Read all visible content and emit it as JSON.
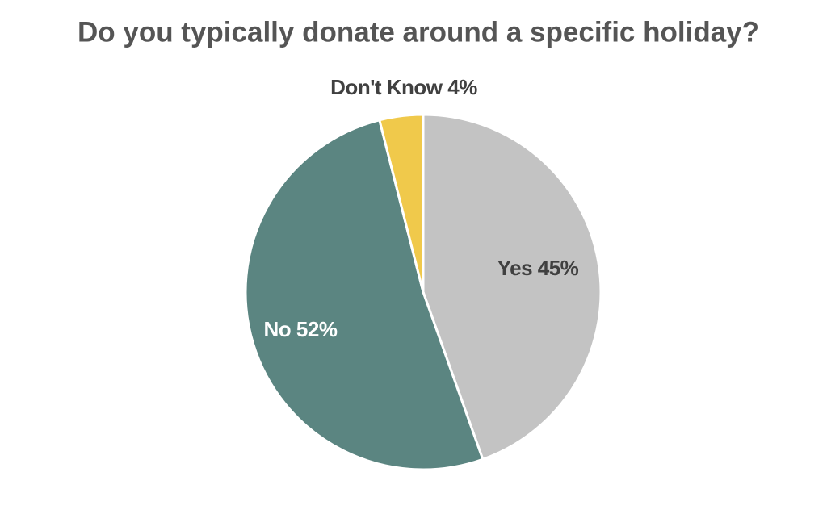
{
  "chart_data": {
    "type": "pie",
    "title": "Do you typically donate around a specific holiday?",
    "values": [
      45,
      52,
      4
    ],
    "value_labels": [
      "Yes 45%",
      "No 52%",
      "Don't Know 4%"
    ],
    "colors": [
      "#c3c3c3",
      "#5b8581",
      "#f0c94b"
    ],
    "label_colors": [
      "#404040",
      "#ffffff",
      "#404040"
    ]
  }
}
